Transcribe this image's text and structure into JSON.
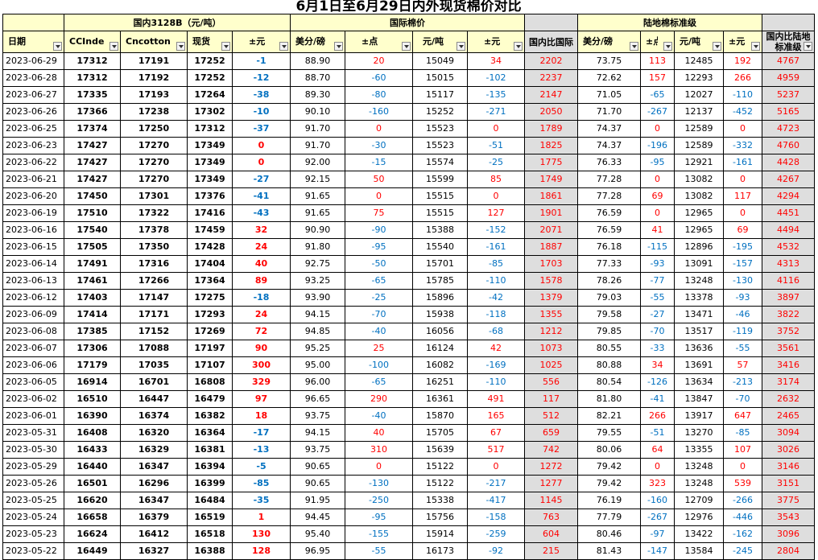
{
  "title": "6月1日至6月29日内外现货棉价对比",
  "groups": {
    "domestic": "国内3128B（元/吨）",
    "international": "国际棉价",
    "land": "陆地棉标准级"
  },
  "headers": {
    "date": "日期",
    "ccindex": "CCIndex",
    "cncotton": "Cncotton",
    "spot": "现货",
    "change": "±元",
    "usd_lb": "美分/磅",
    "pts": "±点",
    "yuan_t": "元/吨",
    "change2": "±元",
    "ratio_intl": "国内比国际",
    "usd_lb2": "美分/磅",
    "pts2": "±点",
    "yuan_t2": "元/吨",
    "change3": "±元",
    "ratio_land": "国内比陆地标准级"
  },
  "colors": {
    "header_fill": "#ffffcc",
    "ratio_fill": "#dedede",
    "negative": "#0070c0",
    "positive": "#ff0000"
  },
  "rows": [
    [
      "2023-06-29",
      "17312",
      "17191",
      "17252",
      "-1",
      "88.90",
      "20",
      "15049",
      "34",
      "2202",
      "73.75",
      "113",
      "12485",
      "192",
      "4767"
    ],
    [
      "2023-06-28",
      "17312",
      "17192",
      "17252",
      "-12",
      "88.70",
      "-60",
      "15015",
      "-102",
      "2237",
      "72.62",
      "157",
      "12293",
      "266",
      "4959"
    ],
    [
      "2023-06-27",
      "17335",
      "17193",
      "17264",
      "-38",
      "89.30",
      "-80",
      "15117",
      "-135",
      "2147",
      "71.05",
      "-65",
      "12027",
      "-110",
      "5237"
    ],
    [
      "2023-06-26",
      "17366",
      "17238",
      "17302",
      "-10",
      "90.10",
      "-160",
      "15252",
      "-271",
      "2050",
      "71.70",
      "-267",
      "12137",
      "-452",
      "5165"
    ],
    [
      "2023-06-25",
      "17374",
      "17250",
      "17312",
      "-37",
      "91.70",
      "0",
      "15523",
      "0",
      "1789",
      "74.37",
      "0",
      "12589",
      "0",
      "4723"
    ],
    [
      "2023-06-23",
      "17427",
      "17270",
      "17349",
      "0",
      "91.70",
      "-30",
      "15523",
      "-51",
      "1825",
      "74.37",
      "-196",
      "12589",
      "-332",
      "4760"
    ],
    [
      "2023-06-22",
      "17427",
      "17270",
      "17349",
      "0",
      "92.00",
      "-15",
      "15574",
      "-25",
      "1775",
      "76.33",
      "-95",
      "12921",
      "-161",
      "4428"
    ],
    [
      "2023-06-21",
      "17427",
      "17270",
      "17349",
      "-27",
      "92.15",
      "50",
      "15599",
      "85",
      "1749",
      "77.28",
      "0",
      "13082",
      "0",
      "4267"
    ],
    [
      "2023-06-20",
      "17450",
      "17301",
      "17376",
      "-41",
      "91.65",
      "0",
      "15515",
      "0",
      "1861",
      "77.28",
      "69",
      "13082",
      "117",
      "4294"
    ],
    [
      "2023-06-19",
      "17510",
      "17322",
      "17416",
      "-43",
      "91.65",
      "75",
      "15515",
      "127",
      "1901",
      "76.59",
      "0",
      "12965",
      "0",
      "4451"
    ],
    [
      "2023-06-16",
      "17540",
      "17378",
      "17459",
      "32",
      "90.90",
      "-90",
      "15388",
      "-152",
      "2071",
      "76.59",
      "41",
      "12965",
      "69",
      "4494"
    ],
    [
      "2023-06-15",
      "17505",
      "17350",
      "17428",
      "24",
      "91.80",
      "-95",
      "15540",
      "-161",
      "1887",
      "76.18",
      "-115",
      "12896",
      "-195",
      "4532"
    ],
    [
      "2023-06-14",
      "17491",
      "17316",
      "17404",
      "40",
      "92.75",
      "-50",
      "15701",
      "-85",
      "1703",
      "77.33",
      "-93",
      "13091",
      "-157",
      "4313"
    ],
    [
      "2023-06-13",
      "17461",
      "17266",
      "17364",
      "89",
      "93.25",
      "-65",
      "15785",
      "-110",
      "1578",
      "78.26",
      "-77",
      "13248",
      "-130",
      "4116"
    ],
    [
      "2023-06-12",
      "17403",
      "17147",
      "17275",
      "-18",
      "93.90",
      "-25",
      "15896",
      "-42",
      "1379",
      "79.03",
      "-55",
      "13378",
      "-93",
      "3897"
    ],
    [
      "2023-06-09",
      "17414",
      "17171",
      "17293",
      "24",
      "94.15",
      "-70",
      "15938",
      "-118",
      "1355",
      "79.58",
      "-27",
      "13471",
      "-46",
      "3822"
    ],
    [
      "2023-06-08",
      "17385",
      "17152",
      "17269",
      "72",
      "94.85",
      "-40",
      "16056",
      "-68",
      "1212",
      "79.85",
      "-70",
      "13517",
      "-119",
      "3752"
    ],
    [
      "2023-06-07",
      "17306",
      "17088",
      "17197",
      "90",
      "95.25",
      "25",
      "16124",
      "42",
      "1073",
      "80.55",
      "-33",
      "13636",
      "-55",
      "3561"
    ],
    [
      "2023-06-06",
      "17179",
      "17035",
      "17107",
      "300",
      "95.00",
      "-100",
      "16082",
      "-169",
      "1025",
      "80.88",
      "34",
      "13691",
      "57",
      "3416"
    ],
    [
      "2023-06-05",
      "16914",
      "16701",
      "16808",
      "329",
      "96.00",
      "-65",
      "16251",
      "-110",
      "556",
      "80.54",
      "-126",
      "13634",
      "-213",
      "3174"
    ],
    [
      "2023-06-02",
      "16510",
      "16447",
      "16479",
      "97",
      "96.65",
      "290",
      "16361",
      "491",
      "117",
      "81.80",
      "-41",
      "13847",
      "-70",
      "2632"
    ],
    [
      "2023-06-01",
      "16390",
      "16374",
      "16382",
      "18",
      "93.75",
      "-40",
      "15870",
      "165",
      "512",
      "82.21",
      "266",
      "13917",
      "647",
      "2465"
    ],
    [
      "2023-05-31",
      "16408",
      "16320",
      "16364",
      "-17",
      "94.15",
      "40",
      "15705",
      "67",
      "659",
      "79.55",
      "-51",
      "13270",
      "-85",
      "3094"
    ],
    [
      "2023-05-30",
      "16433",
      "16329",
      "16381",
      "-13",
      "93.75",
      "310",
      "15639",
      "517",
      "742",
      "80.06",
      "64",
      "13355",
      "107",
      "3026"
    ],
    [
      "2023-05-29",
      "16440",
      "16347",
      "16394",
      "-5",
      "90.65",
      "0",
      "15122",
      "0",
      "1272",
      "79.42",
      "0",
      "13248",
      "0",
      "3146"
    ],
    [
      "2023-05-26",
      "16501",
      "16296",
      "16399",
      "-85",
      "90.65",
      "-130",
      "15122",
      "-217",
      "1277",
      "79.42",
      "323",
      "13248",
      "539",
      "3151"
    ],
    [
      "2023-05-25",
      "16620",
      "16347",
      "16484",
      "-35",
      "91.95",
      "-250",
      "15338",
      "-417",
      "1145",
      "76.19",
      "-160",
      "12709",
      "-266",
      "3775"
    ],
    [
      "2023-05-24",
      "16658",
      "16379",
      "16519",
      "1",
      "94.45",
      "-95",
      "15756",
      "-158",
      "763",
      "77.79",
      "-267",
      "12976",
      "-446",
      "3543"
    ],
    [
      "2023-05-23",
      "16624",
      "16412",
      "16518",
      "130",
      "95.40",
      "-155",
      "15914",
      "-259",
      "604",
      "80.46",
      "-97",
      "13422",
      "-162",
      "3096"
    ],
    [
      "2023-05-22",
      "16449",
      "16327",
      "16388",
      "128",
      "96.95",
      "-55",
      "16173",
      "-92",
      "215",
      "81.43",
      "-147",
      "13584",
      "-245",
      "2804"
    ]
  ]
}
